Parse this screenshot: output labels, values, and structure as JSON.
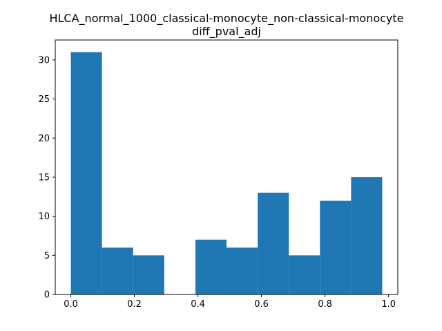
{
  "chart_data": {
    "type": "bar",
    "title": "HLCA_normal_1000_classical-monocyte_non-classical-monocyte",
    "subtitle": "diff_pval_adj",
    "xlabel": "",
    "ylabel": "",
    "bins": [
      {
        "x0": 0.0,
        "x1": 0.098,
        "count": 31
      },
      {
        "x0": 0.098,
        "x1": 0.196,
        "count": 6
      },
      {
        "x0": 0.196,
        "x1": 0.294,
        "count": 5
      },
      {
        "x0": 0.294,
        "x1": 0.392,
        "count": 0
      },
      {
        "x0": 0.392,
        "x1": 0.49,
        "count": 7
      },
      {
        "x0": 0.49,
        "x1": 0.588,
        "count": 6
      },
      {
        "x0": 0.588,
        "x1": 0.686,
        "count": 13
      },
      {
        "x0": 0.686,
        "x1": 0.784,
        "count": 5
      },
      {
        "x0": 0.784,
        "x1": 0.882,
        "count": 12
      },
      {
        "x0": 0.882,
        "x1": 0.98,
        "count": 15
      }
    ],
    "xlim": [
      -0.049,
      1.029
    ],
    "ylim": [
      0,
      32.55
    ],
    "xticks": [
      0.0,
      0.2,
      0.4,
      0.6,
      0.8,
      1.0
    ],
    "xtick_labels": [
      "0.0",
      "0.2",
      "0.4",
      "0.6",
      "0.8",
      "1.0"
    ],
    "yticks": [
      0,
      5,
      10,
      15,
      20,
      25,
      30
    ],
    "ytick_labels": [
      "0",
      "5",
      "10",
      "15",
      "20",
      "25",
      "30"
    ],
    "bar_color": "#1f77b4",
    "grid": false,
    "legend": "none"
  }
}
